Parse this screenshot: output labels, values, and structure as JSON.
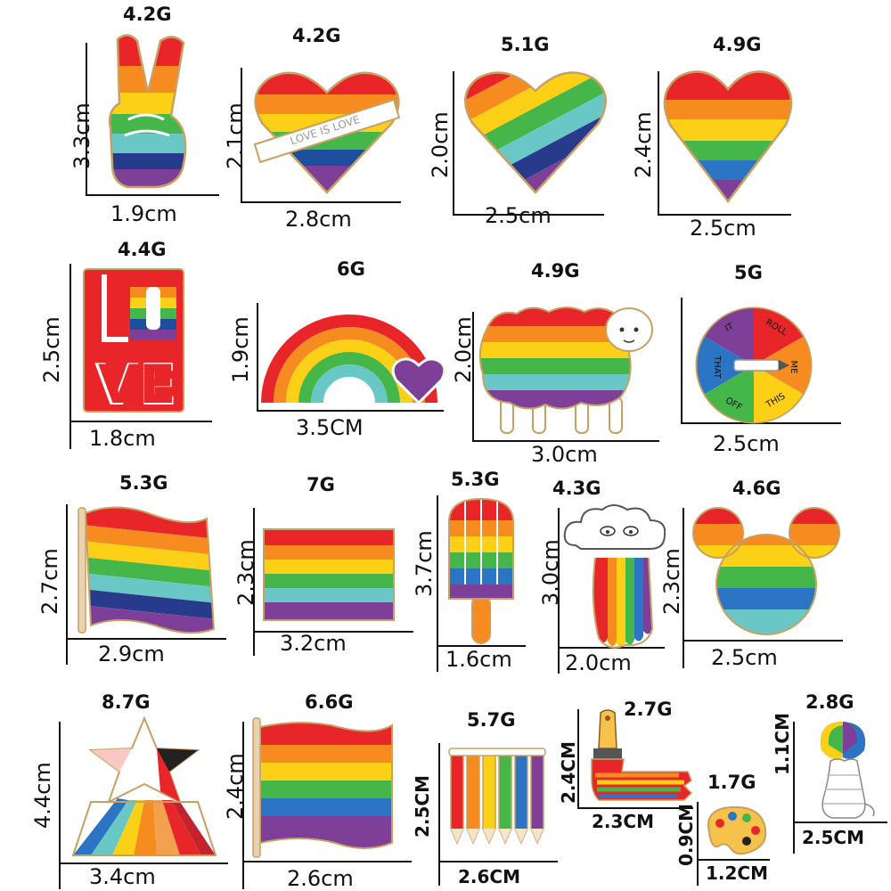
{
  "products": [
    {
      "id": "peace-hand",
      "weight": "4.2G",
      "height": "3.3cm",
      "width": "1.9cm"
    },
    {
      "id": "love-is-love-heart",
      "weight": "4.2G",
      "height": "2.1cm",
      "width": "2.8cm",
      "banner": "LOVE IS LOVE"
    },
    {
      "id": "diagonal-heart",
      "weight": "5.1G",
      "height": "2.0cm",
      "width": "2.5cm"
    },
    {
      "id": "striped-heart",
      "weight": "4.9G",
      "height": "2.4cm",
      "width": "2.5cm"
    },
    {
      "id": "love-letters",
      "weight": "4.4G",
      "height": "2.5cm",
      "width": "1.8cm"
    },
    {
      "id": "rainbow-heart",
      "weight": "6G",
      "height": "1.9cm",
      "width": "3.5CM"
    },
    {
      "id": "rainbow-sheep",
      "weight": "4.9G",
      "height": "2.0cm",
      "width": "3.0cm"
    },
    {
      "id": "spinner-wheel",
      "weight": "5G",
      "height": "",
      "width": "2.5cm",
      "wheel_words": [
        "ROLL",
        "ME",
        "THIS",
        "OFF",
        "THAT",
        "IT"
      ]
    },
    {
      "id": "wavy-flag",
      "weight": "5.3G",
      "height": "2.7cm",
      "width": "2.9cm"
    },
    {
      "id": "square-flag",
      "weight": "7G",
      "height": "2.3cm",
      "width": "3.2cm"
    },
    {
      "id": "popsicle",
      "weight": "5.3G",
      "height": "3.7cm",
      "width": "1.6cm"
    },
    {
      "id": "rainbow-cloud",
      "weight": "4.3G",
      "height": "3.0cm",
      "width": "2.0cm"
    },
    {
      "id": "mouse-ears",
      "weight": "4.6G",
      "height": "2.3cm",
      "width": "2.5cm"
    },
    {
      "id": "star-dress",
      "weight": "8.7G",
      "height": "4.4cm",
      "width": "3.4cm"
    },
    {
      "id": "pole-flag",
      "weight": "6.6G",
      "height": "2.4cm",
      "width": "2.6cm"
    },
    {
      "id": "pencils",
      "weight": "5.7G",
      "height": "2.5CM",
      "width": "2.6CM"
    },
    {
      "id": "paint-brush",
      "weight": "2.7G",
      "height": "2.4CM",
      "width": "2.3CM"
    },
    {
      "id": "palette",
      "weight": "1.7G",
      "height": "0.9CM",
      "width": "1.2CM"
    },
    {
      "id": "balloon-head",
      "weight": "2.8G",
      "height": "1.1CM",
      "width": "2.5CM"
    }
  ],
  "colors": {
    "red": "#e8262a",
    "orange": "#f68b1f",
    "yellow": "#fbd016",
    "green": "#45b649",
    "teal": "#69c8c5",
    "blue": "#1e4e9e",
    "navy": "#283a8c",
    "purple": "#7d3f98",
    "gold": "#c9a062"
  }
}
